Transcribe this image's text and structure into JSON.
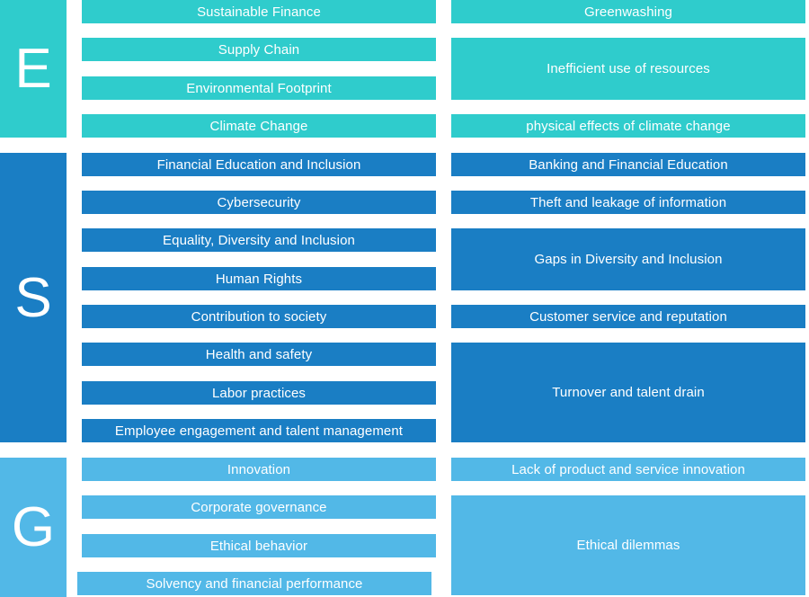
{
  "colors": {
    "E": "#2fcccc",
    "S": "#1a7ec4",
    "G": "#52b8e7",
    "text": "#ffffff"
  },
  "sections": {
    "e": {
      "letter": "E"
    },
    "s": {
      "letter": "S"
    },
    "g": {
      "letter": "G"
    }
  },
  "topics": [
    "Sustainable Finance",
    "Supply Chain",
    "Environmental Footprint",
    "Climate Change",
    "Financial Education and Inclusion",
    "Cybersecurity",
    "Equality, Diversity and Inclusion",
    "Human Rights",
    "Contribution to society",
    "Health and safety",
    "Labor practices",
    "Employee engagement and talent management",
    "Innovation",
    "Corporate governance",
    "Ethical behavior",
    "Solvency and financial performance"
  ],
  "risks": [
    "Greenwashing",
    "Inefficient use of resources",
    "physical effects of climate change",
    "Banking and Financial Education",
    "Theft and leakage of information",
    "Gaps in Diversity and Inclusion",
    "Customer service and reputation",
    "Turnover and talent drain",
    "Lack of product and service innovation",
    "Ethical dilemmas"
  ]
}
